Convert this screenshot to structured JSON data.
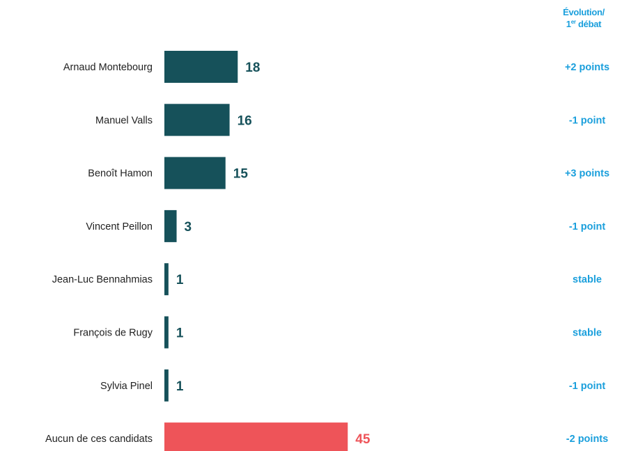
{
  "header": {
    "evolution_line1": "Évolution/",
    "evolution_line2_num": "1",
    "evolution_line2_sup": "er",
    "evolution_line2_rest": " débat"
  },
  "chart_data": {
    "type": "bar",
    "orientation": "horizontal",
    "categories": [
      "Arnaud Montebourg",
      "Manuel Valls",
      "Benoît Hamon",
      "Vincent Peillon",
      "Jean-Luc Bennahmias",
      "François de Rugy",
      "Sylvia Pinel",
      "Aucun de ces candidats"
    ],
    "values": [
      18,
      16,
      15,
      3,
      1,
      1,
      1,
      45
    ],
    "evolution": [
      "+2 points",
      "-1 point",
      "+3 points",
      "-1 point",
      "stable",
      "stable",
      "-1 point",
      "-2 points"
    ],
    "highlight_index": 7,
    "colors": {
      "bar": "#16515a",
      "highlight_bar": "#ee5459",
      "value_text": "#16515a",
      "highlight_value_text": "#ee5459",
      "evolution_text": "#1a9fdc",
      "category_text": "#222222"
    },
    "xlim": [
      0,
      45
    ],
    "grid": false,
    "legend": "none"
  }
}
